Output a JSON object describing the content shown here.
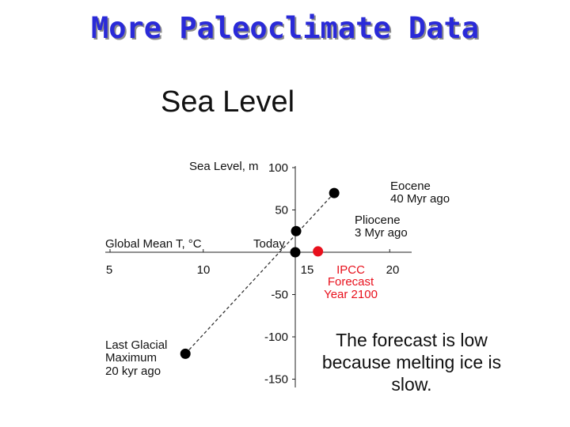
{
  "slide": {
    "title": "More Paleoclimate Data"
  },
  "chart_data": {
    "type": "scatter",
    "title": "Sea Level",
    "xlabel": "Global Mean T, °C",
    "ylabel": "Sea Level, m",
    "xlim": [
      5,
      21
    ],
    "ylim": [
      -150,
      100
    ],
    "x_ticks": [
      "5",
      "10",
      "15",
      "20"
    ],
    "y_ticks": [
      "100",
      "50",
      "-50",
      "-100",
      "-150"
    ],
    "axis_origin_label": "Today",
    "points": [
      {
        "label": "Last Glacial Maximum 20 kyr ago",
        "x": 9,
        "y": -120,
        "color": "#000000"
      },
      {
        "label": "Today",
        "x": 14,
        "y": 0,
        "color": "#000000"
      },
      {
        "label": "Pliocene 3 Myr ago",
        "x": 16,
        "y": 25,
        "color": "#000000"
      },
      {
        "label": "Eocene 40 Myr ago",
        "x": 18,
        "y": 70,
        "color": "#000000"
      },
      {
        "label": "IPCC Forecast Year 2100",
        "x": 17.3,
        "y": 1,
        "color": "#e8101c"
      }
    ],
    "point_labels": {
      "eocene": [
        "Eocene",
        "40 Myr ago"
      ],
      "pliocene": [
        "Pliocene",
        "3 Myr ago"
      ],
      "lgm": [
        "Last Glacial",
        "Maximum",
        "20 kyr ago"
      ],
      "ipcc": [
        "IPCC",
        "Forecast",
        "Year 2100"
      ]
    },
    "trend_line": {
      "style": "dashed",
      "from": [
        9,
        -120
      ],
      "to": [
        18,
        70
      ]
    },
    "annotation": "The forecast is low because melting ice is slow."
  }
}
